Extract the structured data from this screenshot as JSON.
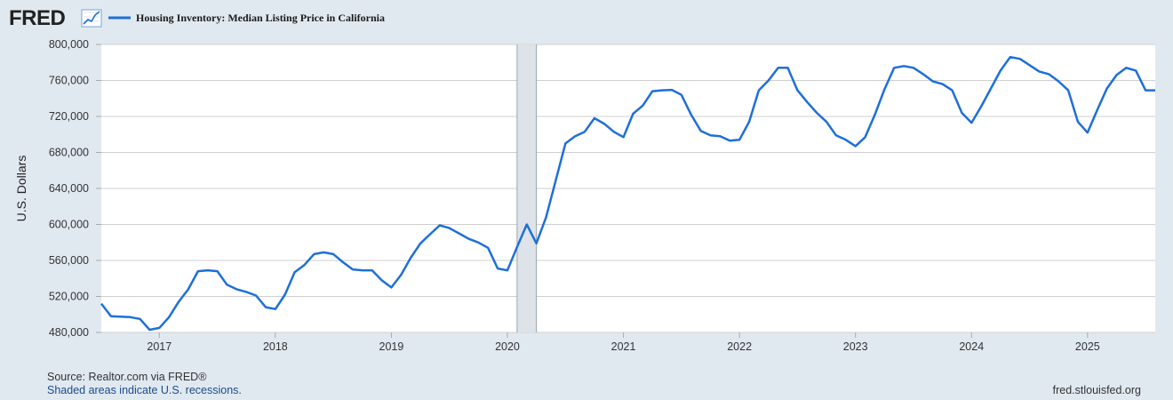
{
  "header": {
    "logo_text": "FRED",
    "logo_icon": "trend-line-icon",
    "legend_label": "Housing Inventory: Median Listing Price in California"
  },
  "footer": {
    "source": "Source: Realtor.com via FRED®",
    "recessions": "Shaded areas indicate U.S. recessions.",
    "url": "fred.stlouisfed.org"
  },
  "colors": {
    "series": "#1e6fd9",
    "recession": "#dde3e9",
    "plot_bg": "#ffffff",
    "page_bg": "#e1e9f0",
    "grid": "#cfcfcf"
  },
  "chart_data": {
    "type": "line",
    "title": "",
    "xlabel": "",
    "ylabel": "U.S. Dollars",
    "ylim": [
      480000,
      800000
    ],
    "yticks": [
      480000,
      520000,
      560000,
      600000,
      640000,
      680000,
      720000,
      760000,
      800000
    ],
    "ytick_labels": [
      "480,000",
      "520,000",
      "560,000",
      "600,000",
      "640,000",
      "680,000",
      "720,000",
      "760,000",
      "800,000"
    ],
    "xlim": [
      "2016-07",
      "2025-08"
    ],
    "xticks": [
      "2017",
      "2018",
      "2019",
      "2020",
      "2021",
      "2022",
      "2023",
      "2024",
      "2025"
    ],
    "grid": "horizontal",
    "legend_position": "top-left",
    "recession": {
      "start": "2020-02",
      "end": "2020-04"
    },
    "series": [
      {
        "name": "Housing Inventory: Median Listing Price in California",
        "start": "2016-07",
        "frequency": "monthly",
        "values": [
          512000,
          498000,
          497500,
          497000,
          495000,
          483000,
          485000,
          497000,
          514000,
          528000,
          548000,
          549000,
          548000,
          533000,
          528000,
          525000,
          521000,
          508000,
          506000,
          522000,
          547000,
          555000,
          567000,
          569000,
          567000,
          558000,
          550000,
          549000,
          549000,
          538000,
          530000,
          544000,
          563000,
          579000,
          589000,
          599000,
          596000,
          590000,
          584000,
          580000,
          574000,
          551000,
          549000,
          575000,
          600000,
          579000,
          608000,
          649000,
          690000,
          698000,
          703000,
          718000,
          712000,
          703000,
          697000,
          723000,
          732000,
          748000,
          749000,
          749500,
          744000,
          722000,
          704000,
          699000,
          698000,
          693000,
          694000,
          714000,
          749000,
          760000,
          774000,
          774000,
          749000,
          736000,
          724000,
          714000,
          699000,
          694000,
          687000,
          697000,
          722000,
          750000,
          774000,
          776000,
          774000,
          767000,
          759000,
          756000,
          749000,
          724000,
          713000,
          731000,
          751000,
          771000,
          786000,
          784000,
          777000,
          770000,
          767000,
          759000,
          749000,
          714000,
          702000,
          727000,
          751000,
          766000,
          774000,
          771000,
          749000,
          749000
        ]
      }
    ]
  }
}
